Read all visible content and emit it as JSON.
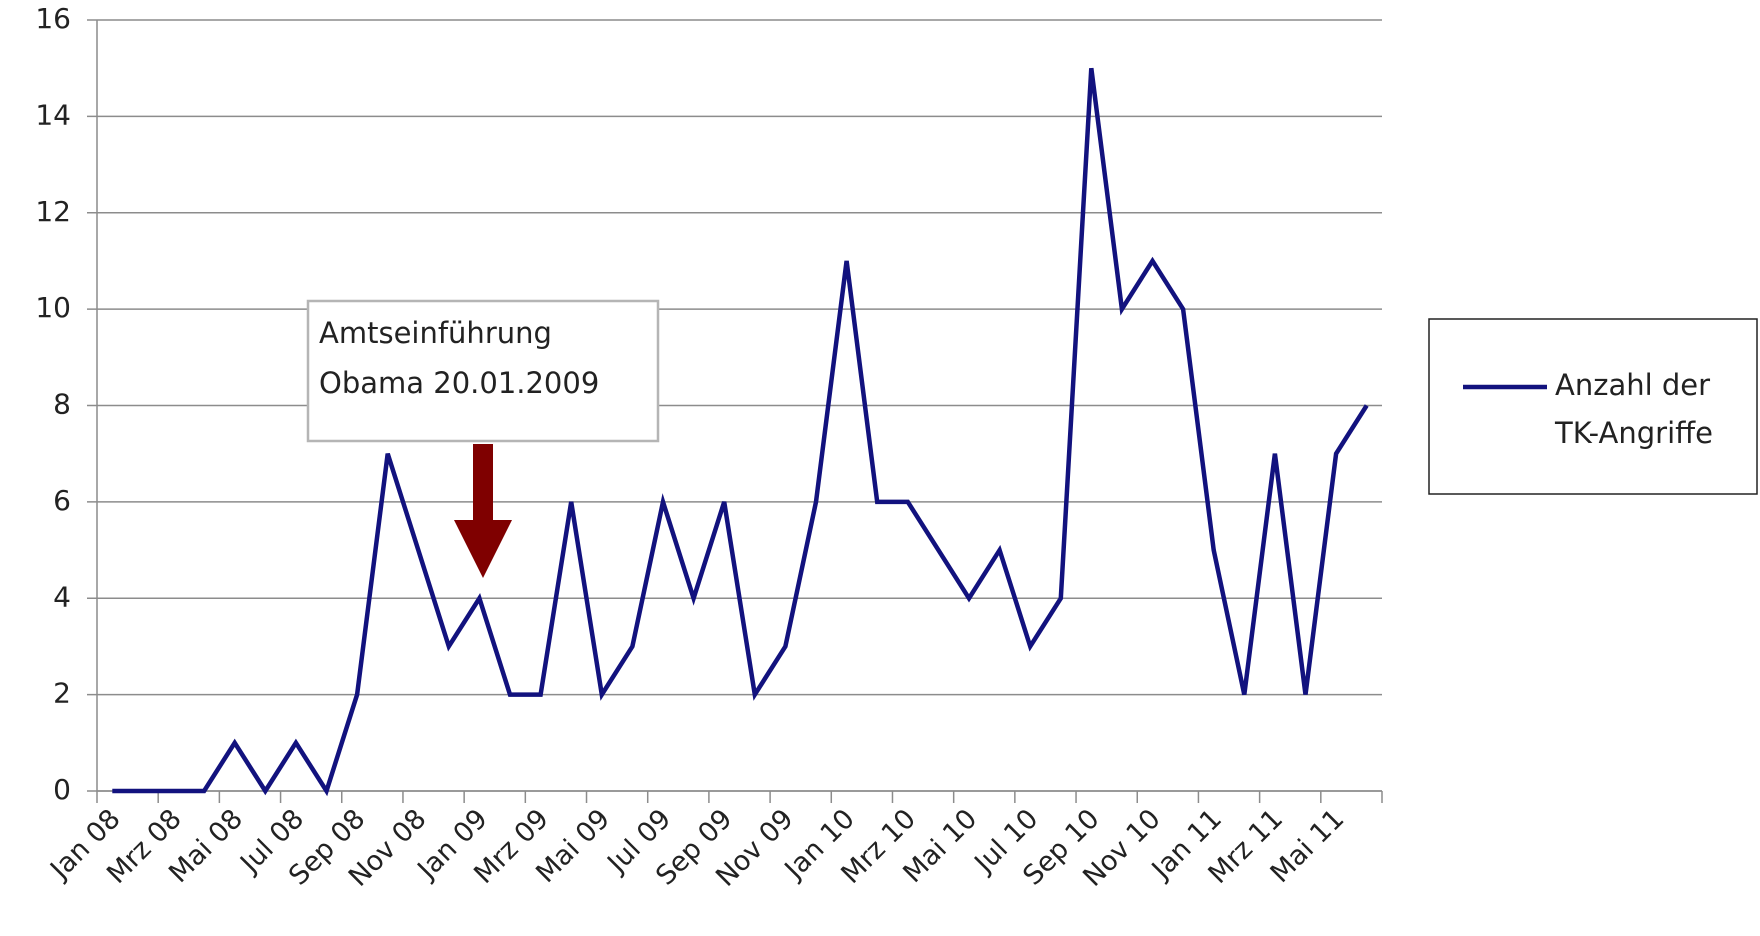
{
  "chart_data": {
    "type": "line",
    "categories": [
      "Jan 08",
      null,
      "Mrz 08",
      null,
      "Mai 08",
      null,
      "Jul 08",
      null,
      "Sep 08",
      null,
      "Nov 08",
      null,
      "Jan 09",
      null,
      "Mrz 09",
      null,
      "Mai 09",
      null,
      "Jul 09",
      null,
      "Sep 09",
      null,
      "Nov 09",
      null,
      "Jan 10",
      null,
      "Mrz 10",
      null,
      "Mai 10",
      null,
      "Jul 10",
      null,
      "Sep 10",
      null,
      "Nov 10",
      null,
      "Jan 11",
      null,
      "Mrz 11",
      null,
      "Mai 11",
      null
    ],
    "series": [
      {
        "name": "Anzahl der TK-Angriffe",
        "color": "#12127e",
        "values": [
          0,
          0,
          0,
          0,
          1,
          0,
          1,
          0,
          2,
          7,
          5,
          3,
          4,
          2,
          2,
          6,
          2,
          3,
          6,
          4,
          6,
          2,
          3,
          6,
          11,
          6,
          6,
          5,
          4,
          5,
          3,
          4,
          15,
          10,
          11,
          10,
          5,
          2,
          7,
          2,
          7,
          8
        ]
      }
    ],
    "ylim": [
      0,
      16
    ],
    "yticks": [
      0,
      2,
      4,
      6,
      8,
      10,
      12,
      14,
      16
    ],
    "grid": true,
    "legend": "right",
    "annotation": [
      "Amtseinführung",
      "Obama 20.01.2009"
    ],
    "annotation_color": "#7f0000"
  }
}
